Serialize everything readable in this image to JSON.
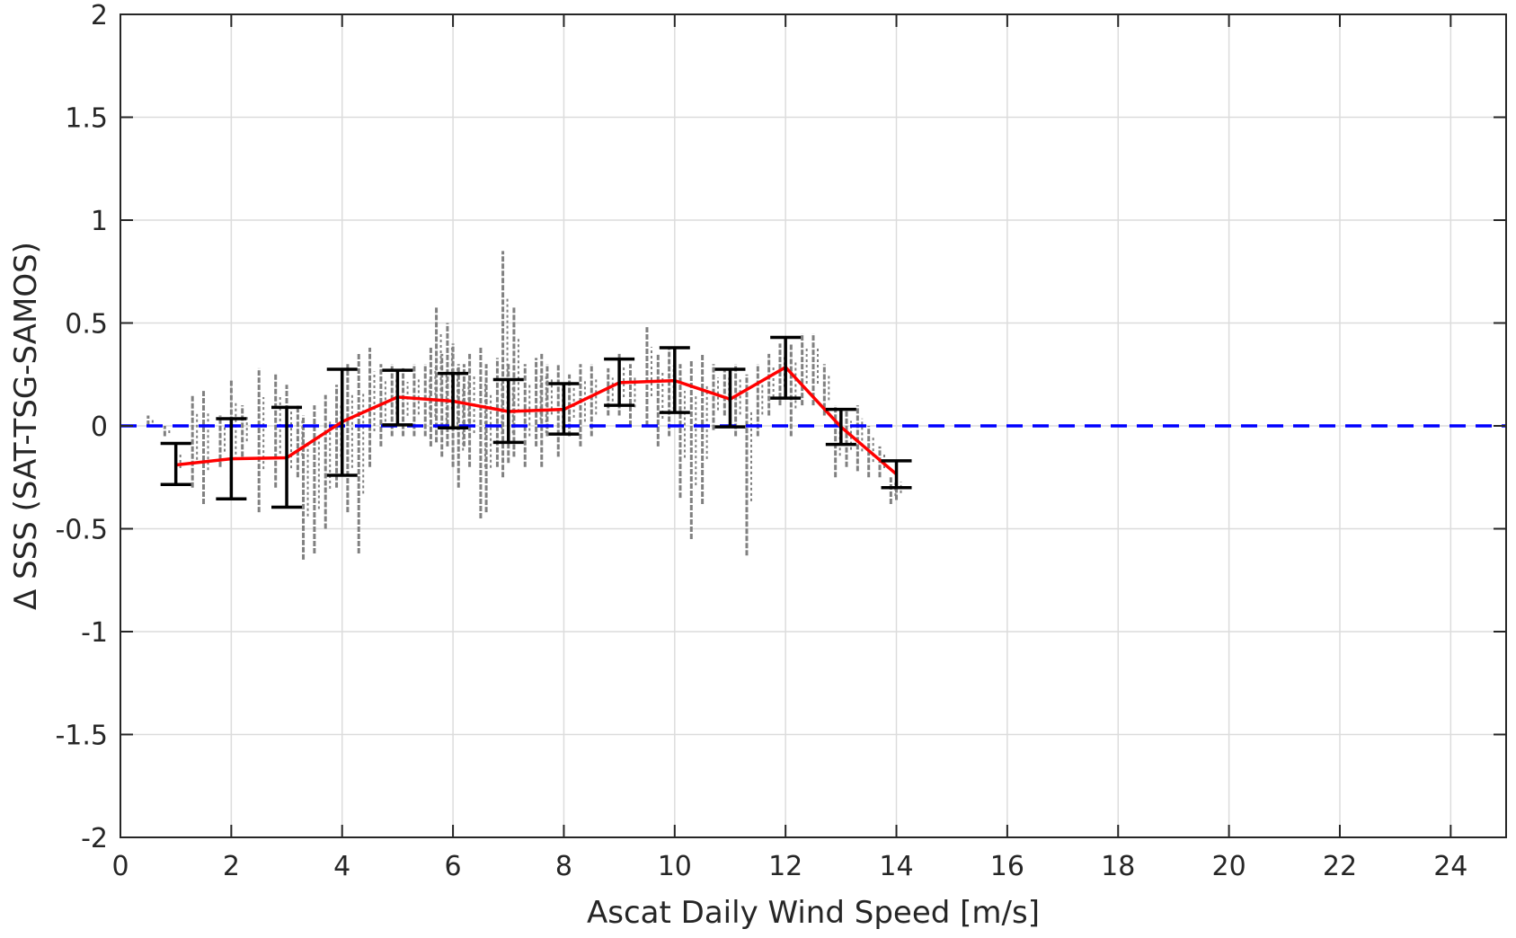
{
  "chart_data": {
    "type": "scatter",
    "title": "",
    "xlabel": "Ascat Daily Wind Speed [m/s]",
    "ylabel": "Δ SSS (SAT-TSG-SAMOS)",
    "xlim": [
      0,
      25
    ],
    "ylim": [
      -2,
      2
    ],
    "xticks": [
      0,
      2,
      4,
      6,
      8,
      10,
      12,
      14,
      16,
      18,
      20,
      22,
      24
    ],
    "yticks": [
      -2,
      -1.5,
      -1,
      -0.5,
      0,
      0.5,
      1,
      1.5,
      2
    ],
    "xtick_labels": [
      "0",
      "2",
      "4",
      "6",
      "8",
      "10",
      "12",
      "14",
      "16",
      "18",
      "20",
      "22",
      "24"
    ],
    "ytick_labels": [
      "-2",
      "-1.5",
      "-1",
      "-0.5",
      "0",
      "0.5",
      "1",
      "1.5",
      "2"
    ],
    "grid": true,
    "colors": {
      "scatter": "#808080",
      "mean_line": "#ff0000",
      "error_bars": "#000000",
      "zero_line": "#0000ff",
      "grid": "#dcdcdc",
      "axes": "#262626"
    },
    "series": [
      {
        "kind": "line_with_errorbars",
        "x": [
          1,
          2,
          3,
          4,
          5,
          6,
          7,
          8,
          9,
          10,
          11,
          12,
          13,
          14
        ],
        "y": [
          -0.19,
          -0.16,
          -0.155,
          0.02,
          0.14,
          0.12,
          0.07,
          0.08,
          0.21,
          0.22,
          0.13,
          0.285,
          -0.005,
          -0.235
        ],
        "y_low": [
          -0.285,
          -0.355,
          -0.395,
          -0.24,
          0.005,
          -0.01,
          -0.08,
          -0.04,
          0.1,
          0.065,
          -0.005,
          0.135,
          -0.09,
          -0.3
        ],
        "y_high": [
          -0.085,
          0.035,
          0.09,
          0.275,
          0.27,
          0.255,
          0.225,
          0.205,
          0.325,
          0.38,
          0.275,
          0.43,
          0.08,
          -0.17
        ]
      },
      {
        "kind": "reference_line",
        "y": 0,
        "style": "dashed"
      },
      {
        "kind": "scatter",
        "x": [
          0.5,
          0.8,
          1.0,
          1.3,
          1.5,
          1.8,
          2.0,
          2.2,
          2.5,
          2.8,
          3.0,
          3.2,
          3.3,
          3.5,
          3.7,
          3.9,
          4.1,
          4.3,
          4.5,
          4.7,
          4.9,
          5.1,
          5.3,
          5.5,
          5.6,
          5.7,
          5.8,
          5.9,
          6.0,
          6.1,
          6.2,
          6.3,
          6.5,
          6.6,
          6.8,
          6.9,
          7.0,
          7.1,
          7.3,
          7.5,
          7.6,
          7.7,
          7.9,
          8.1,
          8.3,
          8.5,
          8.8,
          9.0,
          9.2,
          9.5,
          9.7,
          9.9,
          10.1,
          10.3,
          10.5,
          10.7,
          10.9,
          11.1,
          11.3,
          11.5,
          11.7,
          11.9,
          12.1,
          12.3,
          12.5,
          12.7,
          12.9,
          13.1,
          13.3,
          13.5,
          13.7,
          13.9,
          14.0
        ],
        "y_low": [
          0.0,
          -0.05,
          -0.25,
          -0.3,
          -0.38,
          -0.2,
          -0.33,
          -0.15,
          -0.42,
          -0.3,
          -0.38,
          -0.25,
          -0.65,
          -0.62,
          -0.5,
          -0.3,
          -0.42,
          -0.62,
          -0.2,
          -0.1,
          -0.05,
          -0.05,
          -0.05,
          -0.05,
          -0.1,
          -0.08,
          -0.15,
          -0.1,
          -0.2,
          -0.3,
          -0.1,
          -0.2,
          -0.45,
          -0.42,
          -0.2,
          -0.25,
          -0.18,
          -0.15,
          -0.2,
          -0.1,
          -0.2,
          -0.05,
          -0.15,
          -0.05,
          -0.1,
          -0.05,
          0.05,
          0.05,
          0.0,
          0.0,
          -0.1,
          -0.05,
          -0.35,
          -0.55,
          -0.38,
          -0.02,
          0.05,
          -0.05,
          -0.63,
          -0.05,
          0.05,
          0.1,
          -0.05,
          0.1,
          0.1,
          0.05,
          -0.25,
          -0.2,
          -0.22,
          -0.25,
          -0.25,
          -0.38,
          -0.36
        ],
        "y_high": [
          0.05,
          0.0,
          -0.1,
          0.15,
          0.17,
          0.05,
          0.22,
          0.1,
          0.28,
          0.25,
          0.2,
          0.1,
          0.05,
          0.1,
          0.15,
          0.2,
          0.3,
          0.35,
          0.38,
          0.3,
          0.3,
          0.28,
          0.3,
          0.3,
          0.38,
          0.58,
          0.35,
          0.5,
          0.4,
          0.3,
          0.3,
          0.35,
          0.38,
          0.3,
          0.33,
          0.85,
          0.3,
          0.58,
          0.3,
          0.33,
          0.35,
          0.3,
          0.3,
          0.25,
          0.3,
          0.3,
          0.28,
          0.35,
          0.3,
          0.48,
          0.35,
          0.38,
          0.3,
          0.32,
          0.35,
          0.3,
          0.28,
          0.3,
          0.25,
          0.3,
          0.35,
          0.4,
          0.4,
          0.45,
          0.45,
          0.3,
          0.1,
          0.08,
          0.1,
          0.0,
          -0.1,
          -0.25,
          -0.25
        ]
      }
    ]
  }
}
